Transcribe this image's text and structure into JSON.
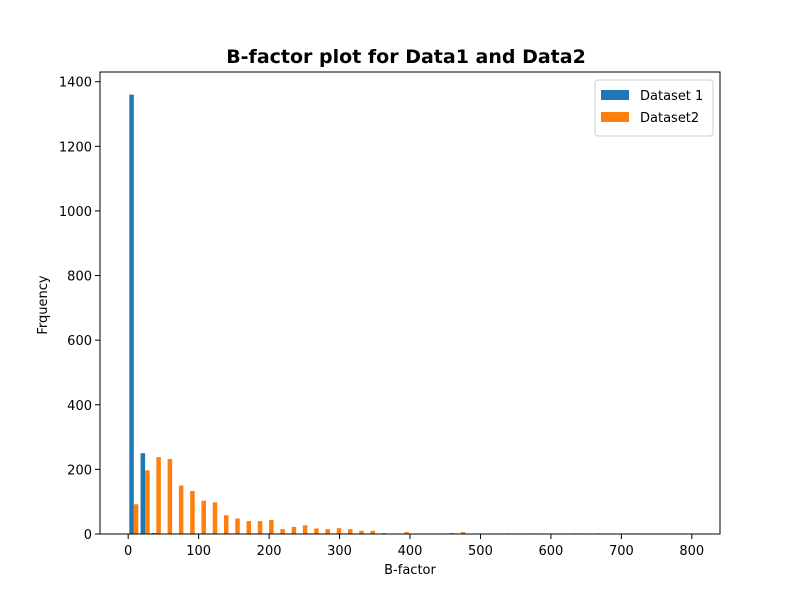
{
  "chart_data": {
    "type": "bar",
    "title": "B-factor plot for Data1 and Data2",
    "xlabel": "B-factor",
    "ylabel": "Frquency",
    "xlim": [
      -40,
      840
    ],
    "ylim": [
      0,
      1430
    ],
    "xticks": [
      0,
      100,
      200,
      300,
      400,
      500,
      600,
      700,
      800
    ],
    "yticks": [
      0,
      200,
      400,
      600,
      800,
      1000,
      1200,
      1400
    ],
    "grid": false,
    "legend_position": "top-right",
    "bin_width": 16,
    "series": [
      {
        "name": "Dataset 1",
        "color": "#1f77b4",
        "bins": [
          {
            "x": 8,
            "value": 1360
          },
          {
            "x": 24,
            "value": 250
          },
          {
            "x": 40,
            "value": 3
          }
        ]
      },
      {
        "name": "Dataset2",
        "color": "#ff7f0e",
        "bins": [
          {
            "x": 8,
            "value": 92
          },
          {
            "x": 24,
            "value": 197
          },
          {
            "x": 40,
            "value": 238
          },
          {
            "x": 56,
            "value": 232
          },
          {
            "x": 72,
            "value": 150
          },
          {
            "x": 88,
            "value": 133
          },
          {
            "x": 104,
            "value": 103
          },
          {
            "x": 120,
            "value": 98
          },
          {
            "x": 136,
            "value": 58
          },
          {
            "x": 152,
            "value": 48
          },
          {
            "x": 168,
            "value": 40
          },
          {
            "x": 184,
            "value": 40
          },
          {
            "x": 200,
            "value": 43
          },
          {
            "x": 216,
            "value": 15
          },
          {
            "x": 232,
            "value": 22
          },
          {
            "x": 248,
            "value": 27
          },
          {
            "x": 264,
            "value": 17
          },
          {
            "x": 280,
            "value": 15
          },
          {
            "x": 296,
            "value": 18
          },
          {
            "x": 312,
            "value": 15
          },
          {
            "x": 328,
            "value": 10
          },
          {
            "x": 344,
            "value": 10
          },
          {
            "x": 360,
            "value": 3
          },
          {
            "x": 392,
            "value": 6
          },
          {
            "x": 456,
            "value": 3
          },
          {
            "x": 472,
            "value": 6
          },
          {
            "x": 536,
            "value": 2
          },
          {
            "x": 568,
            "value": 2
          },
          {
            "x": 632,
            "value": 2
          },
          {
            "x": 664,
            "value": 2
          },
          {
            "x": 712,
            "value": 2
          }
        ]
      }
    ]
  }
}
